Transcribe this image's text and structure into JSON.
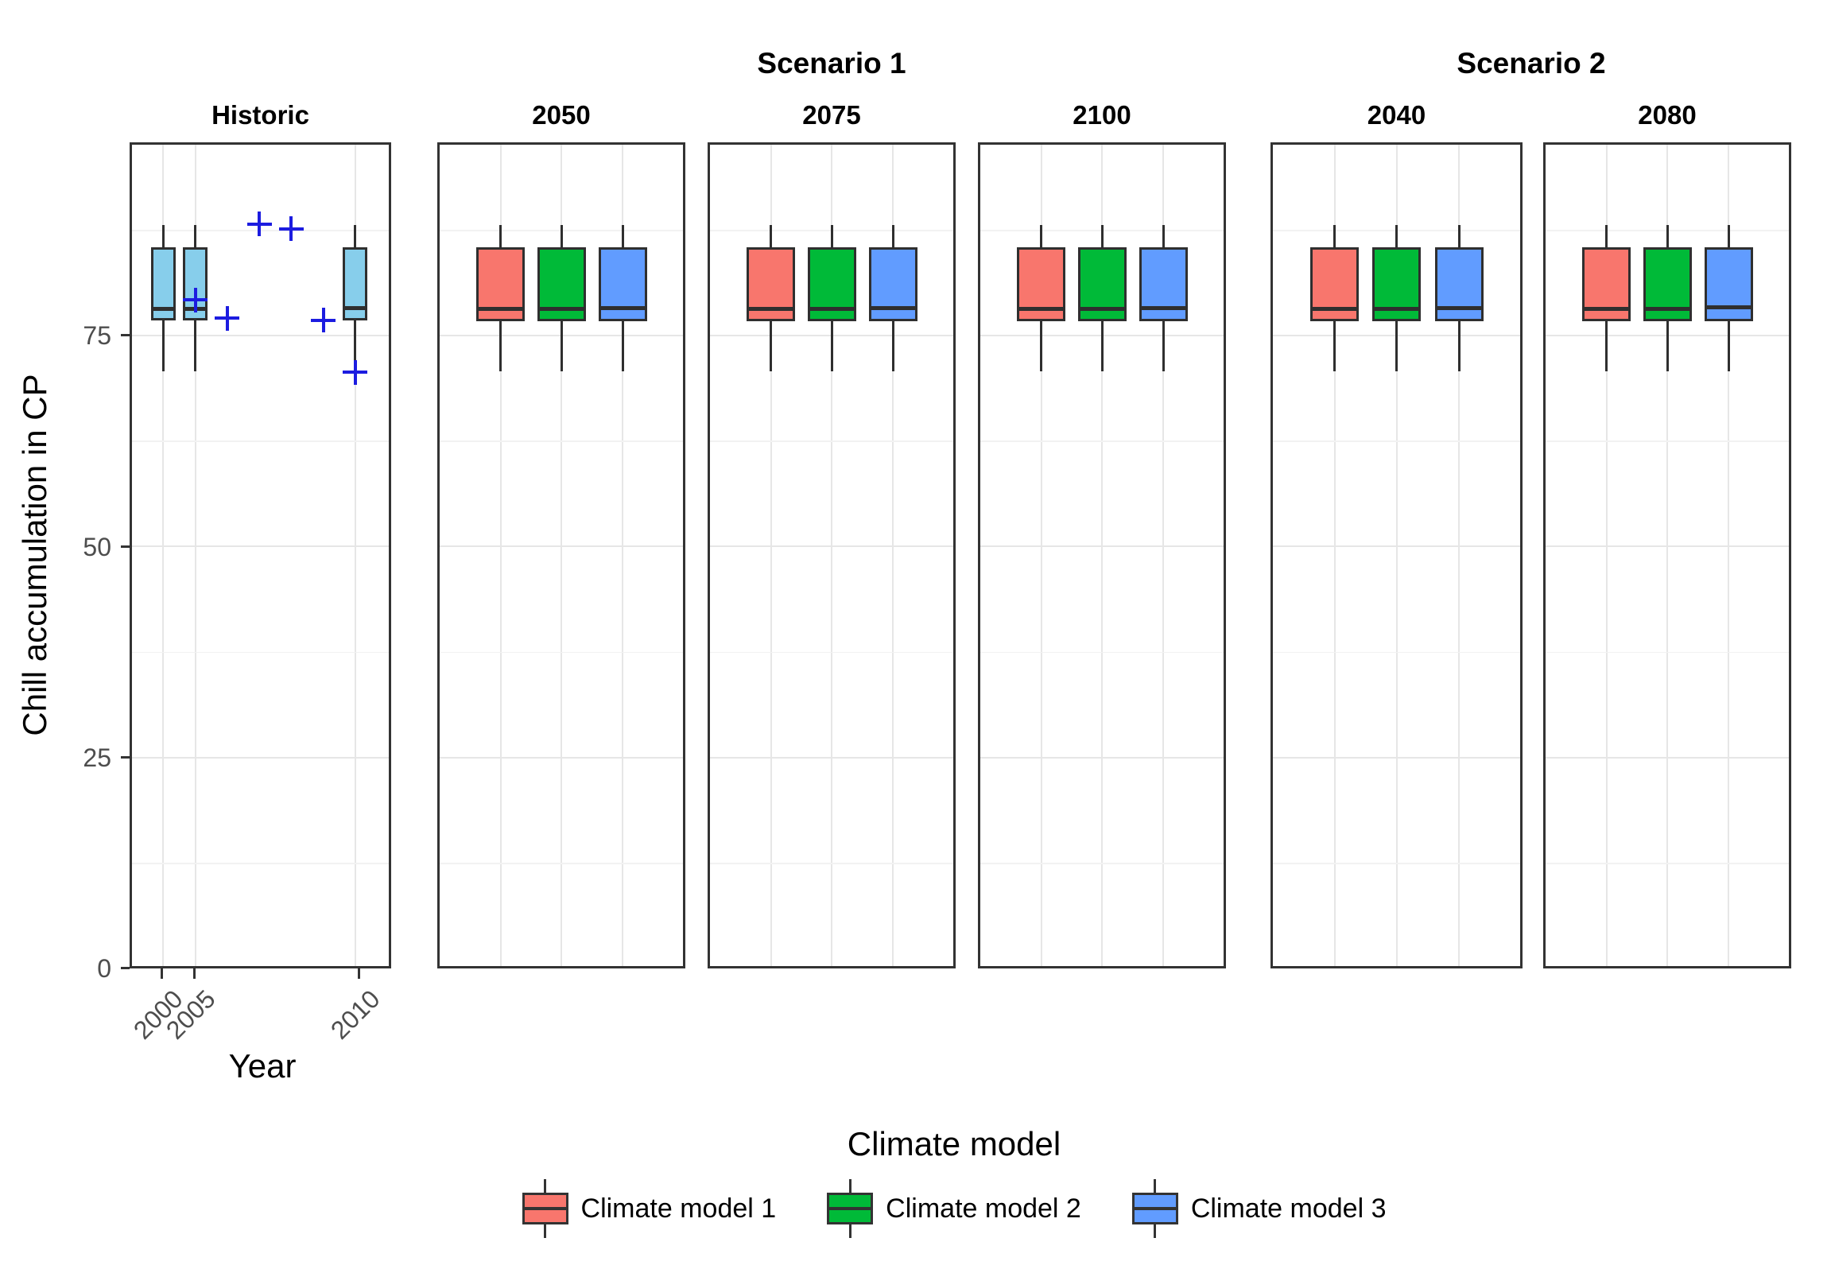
{
  "page": {
    "background": "#FFFFFF"
  },
  "chart_data": {
    "type": "boxplot",
    "title": "",
    "ylabel": "Chill accumulation in CP",
    "xlabel": "Year",
    "ylim": [
      0,
      98
    ],
    "grid": "on",
    "legend_position": "bottom",
    "y_axis": {
      "tick_labels": [
        "0",
        "25",
        "50",
        "75"
      ],
      "tick_values": [
        0,
        25,
        50,
        75
      ],
      "major_gridlines": [
        25,
        50,
        75
      ],
      "minor_gridlines": [
        12.5,
        37.5,
        62.5,
        87.5
      ]
    },
    "historic_axis": {
      "domain": [
        "2000",
        "2005",
        "2006",
        "2007",
        "2008",
        "2009",
        "2010"
      ],
      "tick_labels": [
        "2000",
        "2005",
        "2010"
      ]
    },
    "scenario_groups": [
      {
        "label": "Scenario 1",
        "facets": [
          "2050",
          "2075",
          "2100"
        ]
      },
      {
        "label": "Scenario 2",
        "facets": [
          "2040",
          "2080"
        ]
      }
    ],
    "colors": {
      "historic": "#87CEEB",
      "model1": "#F8766D",
      "model2": "#00BA38",
      "model3": "#619CFF",
      "observed_point": "#1C1CE0",
      "box_border": "#2F2F2F",
      "panel_border": "#333333"
    },
    "facets": [
      {
        "key": "historic",
        "header": "Historic",
        "group": null,
        "boxes": [
          {
            "category": "2000",
            "color_key": "historic",
            "whisker_low": 70.7,
            "q1": 76.8,
            "median": 78.1,
            "q3": 85.4,
            "whisker_high": 88.1
          },
          {
            "category": "2005",
            "color_key": "historic",
            "whisker_low": 70.7,
            "q1": 76.8,
            "median": 78.1,
            "q3": 85.4,
            "whisker_high": 88.1
          },
          {
            "category": "2010",
            "color_key": "historic",
            "whisker_low": 69.3,
            "q1": 76.8,
            "median": 78.2,
            "q3": 85.4,
            "whisker_high": 88.1
          }
        ],
        "points": [
          {
            "category": "2005",
            "value": 79.2
          },
          {
            "category": "2006",
            "value": 77.0
          },
          {
            "category": "2007",
            "value": 88.2
          },
          {
            "category": "2008",
            "value": 87.6
          },
          {
            "category": "2009",
            "value": 76.8
          },
          {
            "category": "2010",
            "value": 70.6
          }
        ]
      },
      {
        "key": "2050",
        "header": "2050",
        "group": "Scenario 1",
        "boxes": [
          {
            "category": "Climate model 1",
            "color_key": "model1",
            "whisker_low": 70.7,
            "q1": 76.7,
            "median": 78.1,
            "q3": 85.4,
            "whisker_high": 88.1
          },
          {
            "category": "Climate model 2",
            "color_key": "model2",
            "whisker_low": 70.7,
            "q1": 76.7,
            "median": 78.1,
            "q3": 85.4,
            "whisker_high": 88.1
          },
          {
            "category": "Climate model 3",
            "color_key": "model3",
            "whisker_low": 70.7,
            "q1": 76.7,
            "median": 78.2,
            "q3": 85.4,
            "whisker_high": 88.1
          }
        ],
        "points": []
      },
      {
        "key": "2075",
        "header": "2075",
        "group": "Scenario 1",
        "boxes": [
          {
            "category": "Climate model 1",
            "color_key": "model1",
            "whisker_low": 70.7,
            "q1": 76.7,
            "median": 78.1,
            "q3": 85.4,
            "whisker_high": 88.1
          },
          {
            "category": "Climate model 2",
            "color_key": "model2",
            "whisker_low": 70.7,
            "q1": 76.7,
            "median": 78.1,
            "q3": 85.4,
            "whisker_high": 88.1
          },
          {
            "category": "Climate model 3",
            "color_key": "model3",
            "whisker_low": 70.7,
            "q1": 76.7,
            "median": 78.2,
            "q3": 85.4,
            "whisker_high": 88.1
          }
        ],
        "points": []
      },
      {
        "key": "2100",
        "header": "2100",
        "group": "Scenario 1",
        "boxes": [
          {
            "category": "Climate model 1",
            "color_key": "model1",
            "whisker_low": 70.7,
            "q1": 76.7,
            "median": 78.1,
            "q3": 85.4,
            "whisker_high": 88.1
          },
          {
            "category": "Climate model 2",
            "color_key": "model2",
            "whisker_low": 70.7,
            "q1": 76.7,
            "median": 78.1,
            "q3": 85.4,
            "whisker_high": 88.1
          },
          {
            "category": "Climate model 3",
            "color_key": "model3",
            "whisker_low": 70.7,
            "q1": 76.7,
            "median": 78.2,
            "q3": 85.4,
            "whisker_high": 88.1
          }
        ],
        "points": []
      },
      {
        "key": "2040",
        "header": "2040",
        "group": "Scenario 2",
        "boxes": [
          {
            "category": "Climate model 1",
            "color_key": "model1",
            "whisker_low": 70.7,
            "q1": 76.7,
            "median": 78.1,
            "q3": 85.4,
            "whisker_high": 88.1
          },
          {
            "category": "Climate model 2",
            "color_key": "model2",
            "whisker_low": 70.7,
            "q1": 76.7,
            "median": 78.1,
            "q3": 85.4,
            "whisker_high": 88.1
          },
          {
            "category": "Climate model 3",
            "color_key": "model3",
            "whisker_low": 70.7,
            "q1": 76.7,
            "median": 78.2,
            "q3": 85.4,
            "whisker_high": 88.1
          }
        ],
        "points": []
      },
      {
        "key": "2080",
        "header": "2080",
        "group": "Scenario 2",
        "boxes": [
          {
            "category": "Climate model 1",
            "color_key": "model1",
            "whisker_low": 70.7,
            "q1": 76.7,
            "median": 78.1,
            "q3": 85.4,
            "whisker_high": 88.1
          },
          {
            "category": "Climate model 2",
            "color_key": "model2",
            "whisker_low": 70.7,
            "q1": 76.7,
            "median": 78.1,
            "q3": 85.4,
            "whisker_high": 88.1
          },
          {
            "category": "Climate model 3",
            "color_key": "model3",
            "whisker_low": 70.7,
            "q1": 76.7,
            "median": 78.3,
            "q3": 85.4,
            "whisker_high": 88.1
          }
        ],
        "points": []
      }
    ]
  },
  "legend": {
    "title": "Climate model",
    "entries": [
      {
        "label": "Climate model 1",
        "color_key": "model1",
        "color": "#F8766D"
      },
      {
        "label": "Climate model 2",
        "color_key": "model2",
        "color": "#00BA38"
      },
      {
        "label": "Climate model 3",
        "color_key": "model3",
        "color": "#619CFF"
      }
    ]
  }
}
